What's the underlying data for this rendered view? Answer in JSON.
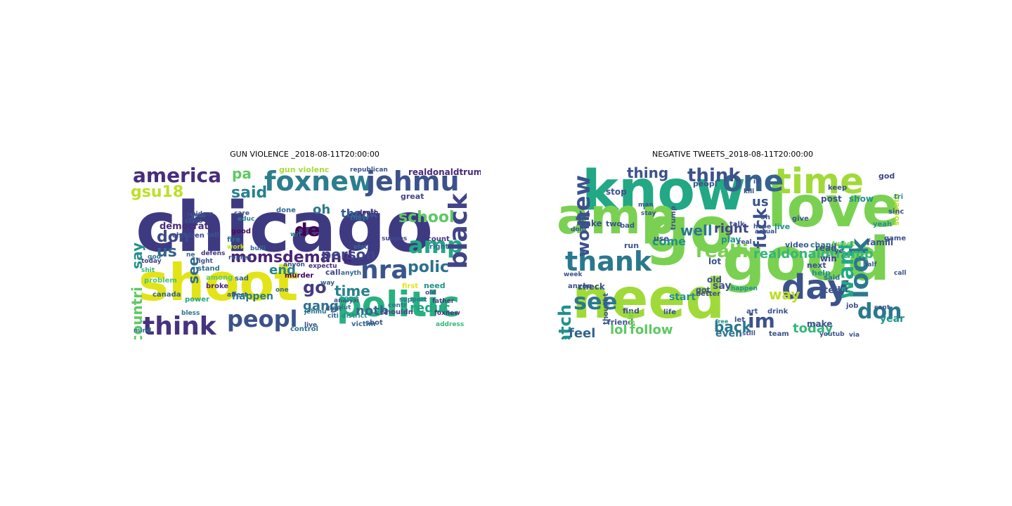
{
  "panels": [
    {
      "title": "GUN VIOLENCE _2018-08-11T20:00:00",
      "words": [
        {
          "text": "chicago",
          "color": "#3e3a82"
        },
        {
          "text": "shoot",
          "color": "#e2e418"
        },
        {
          "text": "politic",
          "color": "#2ab07f"
        },
        {
          "text": "foxnew",
          "color": "#2c7e8e"
        },
        {
          "text": "jehmu",
          "color": "#3b528b"
        },
        {
          "text": "think",
          "color": "#46327e"
        },
        {
          "text": "america",
          "color": "#472d7b"
        },
        {
          "text": "peopl",
          "color": "#3b528b"
        },
        {
          "text": "nra",
          "color": "#39558c"
        },
        {
          "text": "amp",
          "color": "#22a884"
        },
        {
          "text": "black",
          "color": "#414487"
        },
        {
          "text": "gsu18",
          "color": "#bddf26"
        },
        {
          "text": "momsdemand",
          "color": "#482475"
        },
        {
          "text": "said",
          "color": "#26828e"
        },
        {
          "text": "de",
          "color": "#440154"
        },
        {
          "text": "pa",
          "color": "#5ec962"
        },
        {
          "text": "countri",
          "color": "#5ec962"
        },
        {
          "text": "say",
          "color": "#21918c"
        },
        {
          "text": "don",
          "color": "#3e4989"
        },
        {
          "text": "us",
          "color": "#33638d"
        },
        {
          "text": "polic",
          "color": "#2d708e"
        },
        {
          "text": "time",
          "color": "#26828e"
        },
        {
          "text": "person",
          "color": "#414487"
        },
        {
          "text": "end",
          "color": "#25858e"
        },
        {
          "text": "oh",
          "color": "#2a788e"
        },
        {
          "text": "school",
          "color": "#5ec962"
        },
        {
          "text": "thank",
          "color": "#355f8d"
        },
        {
          "text": "gang",
          "color": "#2c728e"
        },
        {
          "text": "go",
          "color": "#443a83"
        },
        {
          "text": "reduc",
          "color": "#21a585"
        },
        {
          "text": "noth",
          "color": "#31688e"
        },
        {
          "text": "see",
          "color": "#2f6c8e"
        },
        {
          "text": "democrat",
          "color": "#472c7a"
        },
        {
          "text": "gun violenc",
          "color": "#a5db36"
        },
        {
          "text": "realdonaldtrump",
          "color": "#482878"
        },
        {
          "text": "republican",
          "color": "#3b528b"
        },
        {
          "text": "happen",
          "color": "#287c8e"
        },
        {
          "text": "children",
          "color": "#3e4a89"
        },
        {
          "text": "canada",
          "color": "#33638d"
        },
        {
          "text": "great",
          "color": "#414487"
        },
        {
          "text": "shot",
          "color": "#38588c"
        },
        {
          "text": "count",
          "color": "#46337f"
        },
        {
          "text": "right",
          "color": "#31688e"
        },
        {
          "text": "first",
          "color": "#e2e418"
        },
        {
          "text": "need",
          "color": "#21918c"
        },
        {
          "text": "call",
          "color": "#404688"
        },
        {
          "text": "fire",
          "color": "#2d708e"
        },
        {
          "text": "good",
          "color": "#470d60"
        },
        {
          "text": "support",
          "color": "#2a788e"
        },
        {
          "text": "analysi",
          "color": "#3b528b"
        },
        {
          "text": "father",
          "color": "#424086"
        },
        {
          "text": "victim",
          "color": "#31688e"
        },
        {
          "text": "address",
          "color": "#35b779"
        },
        {
          "text": "control",
          "color": "#2c728e"
        },
        {
          "text": "live",
          "color": "#3e4a89"
        },
        {
          "text": "today",
          "color": "#433e85"
        },
        {
          "text": "problem",
          "color": "#4ac16d"
        },
        {
          "text": "power",
          "color": "#22a884"
        },
        {
          "text": "among",
          "color": "#5ec962"
        },
        {
          "text": "stand",
          "color": "#2c728e"
        },
        {
          "text": "fight",
          "color": "#3b528b"
        },
        {
          "text": "broke",
          "color": "#482878"
        },
        {
          "text": "sad",
          "color": "#31688e"
        },
        {
          "text": "anyon",
          "color": "#3b528b"
        },
        {
          "text": "murder",
          "color": "#440154"
        },
        {
          "text": "expectu",
          "color": "#472d7b"
        },
        {
          "text": "way",
          "color": "#38588c"
        },
        {
          "text": "hand",
          "color": "#1f9e89"
        },
        {
          "text": "solut",
          "color": "#2a788e"
        },
        {
          "text": "citi",
          "color": "#355f8d"
        },
        {
          "text": "district",
          "color": "#23888e"
        },
        {
          "text": "shouldn",
          "color": "#414487"
        },
        {
          "text": "old",
          "color": "#3b528b"
        },
        {
          "text": "contr",
          "color": "#2c728e"
        },
        {
          "text": "foxnew",
          "color": "#46327e"
        },
        {
          "text": "done",
          "color": "#31688e"
        },
        {
          "text": "care",
          "color": "#3e4989"
        },
        {
          "text": "death",
          "color": "#482878"
        },
        {
          "text": "theyr",
          "color": "#2c728e"
        },
        {
          "text": "educ",
          "color": "#26828e"
        },
        {
          "text": "class",
          "color": "#3b528b"
        },
        {
          "text": "year",
          "color": "#2d708e"
        },
        {
          "text": "epidem",
          "color": "#414487"
        },
        {
          "text": "tell",
          "color": "#38588c"
        },
        {
          "text": "defens",
          "color": "#46327e"
        },
        {
          "text": "work",
          "color": "#c2df23"
        },
        {
          "text": "bulli",
          "color": "#31688e"
        },
        {
          "text": "repres",
          "color": "#3b528b"
        },
        {
          "text": "god",
          "color": "#2a788e"
        },
        {
          "text": "shit",
          "color": "#35b779"
        },
        {
          "text": "bless",
          "color": "#2c728e"
        },
        {
          "text": "affect",
          "color": "#355f8d"
        },
        {
          "text": "jehmu",
          "color": "#2c728e"
        },
        {
          "text": "anyth",
          "color": "#31688e"
        },
        {
          "text": "suppos",
          "color": "#3e4989"
        },
        {
          "text": "wit",
          "color": "#2a788e"
        },
        {
          "text": "one",
          "color": "#31688e"
        },
        {
          "text": "dont",
          "color": "#38588c"
        },
        {
          "text": "mind",
          "color": "#2c728e"
        },
        {
          "text": "elat",
          "color": "#31688e"
        },
        {
          "text": "ne",
          "color": "#31688e"
        },
        {
          "text": "trumpf",
          "color": "#3b528b"
        }
      ]
    },
    {
      "title": "NEGATIVE TWEETS_2018-08-11T20:00:00",
      "words": [
        {
          "text": "know",
          "color": "#22a884"
        },
        {
          "text": "love",
          "color": "#7ad151"
        },
        {
          "text": "go",
          "color": "#7ad151"
        },
        {
          "text": "good",
          "color": "#7ad151"
        },
        {
          "text": "need",
          "color": "#a0da39"
        },
        {
          "text": "amp",
          "color": "#7ad151"
        },
        {
          "text": "time",
          "color": "#a0da39"
        },
        {
          "text": "day",
          "color": "#3b528b"
        },
        {
          "text": "one",
          "color": "#33638d"
        },
        {
          "text": "thank",
          "color": "#2a788e"
        },
        {
          "text": "see",
          "color": "#2a788e"
        },
        {
          "text": "new",
          "color": "#3b528b"
        },
        {
          "text": "look",
          "color": "#2a788e"
        },
        {
          "text": "want",
          "color": "#22a884"
        },
        {
          "text": "don",
          "color": "#2a788e"
        },
        {
          "text": "watch",
          "color": "#21918c"
        },
        {
          "text": "work",
          "color": "#3b528b"
        },
        {
          "text": "think",
          "color": "#3b528b"
        },
        {
          "text": "fuck",
          "color": "#3b528b"
        },
        {
          "text": "realli",
          "color": "#7ad151"
        },
        {
          "text": "realdonaldtrump",
          "color": "#35b779"
        },
        {
          "text": "im",
          "color": "#3b528b"
        },
        {
          "text": "thing",
          "color": "#3b528b"
        },
        {
          "text": "back",
          "color": "#2a788e"
        },
        {
          "text": "feel",
          "color": "#33638d"
        },
        {
          "text": "lol",
          "color": "#5ec962"
        },
        {
          "text": "follow",
          "color": "#5ec962"
        },
        {
          "text": "today",
          "color": "#35b779"
        },
        {
          "text": "way",
          "color": "#bddf26"
        },
        {
          "text": "well",
          "color": "#2a788e"
        },
        {
          "text": "right",
          "color": "#414487"
        },
        {
          "text": "us",
          "color": "#3b528b"
        },
        {
          "text": "year",
          "color": "#21918c"
        },
        {
          "text": "even",
          "color": "#2c728e"
        },
        {
          "text": "make",
          "color": "#3b528b"
        },
        {
          "text": "come",
          "color": "#21918c"
        },
        {
          "text": "say",
          "color": "#3b528b"
        },
        {
          "text": "got",
          "color": "#3b528b"
        },
        {
          "text": "start",
          "color": "#21918c"
        },
        {
          "text": "check",
          "color": "#3b528b"
        },
        {
          "text": "friend",
          "color": "#3b528b"
        },
        {
          "text": "better",
          "color": "#3b528b"
        },
        {
          "text": "tell",
          "color": "#3b528b"
        },
        {
          "text": "show",
          "color": "#21918c"
        },
        {
          "text": "someth",
          "color": "#bddf26"
        },
        {
          "text": "god",
          "color": "#414487"
        },
        {
          "text": "post",
          "color": "#3b528b"
        },
        {
          "text": "video",
          "color": "#3b528b"
        },
        {
          "text": "chang",
          "color": "#2c728e"
        },
        {
          "text": "tweet",
          "color": "#7ad151"
        },
        {
          "text": "famili",
          "color": "#3b528b"
        },
        {
          "text": "read",
          "color": "#3b528b"
        },
        {
          "text": "win",
          "color": "#414487"
        },
        {
          "text": "next",
          "color": "#3b528b"
        },
        {
          "text": "help",
          "color": "#21918c"
        },
        {
          "text": "said",
          "color": "#2c728e"
        },
        {
          "text": "live",
          "color": "#21918c"
        },
        {
          "text": "give",
          "color": "#3b528b"
        },
        {
          "text": "keep",
          "color": "#3b528b"
        },
        {
          "text": "peopl",
          "color": "#3b528b"
        },
        {
          "text": "stop",
          "color": "#3b528b"
        },
        {
          "text": "anyon",
          "color": "#3b528b"
        },
        {
          "text": "old",
          "color": "#3b528b"
        },
        {
          "text": "play",
          "color": "#21918c"
        },
        {
          "text": "lot",
          "color": "#3b528b"
        },
        {
          "text": "take",
          "color": "#3b528b"
        },
        {
          "text": "two",
          "color": "#3b528b"
        },
        {
          "text": "use",
          "color": "#3b528b"
        },
        {
          "text": "talk",
          "color": "#3b528b"
        },
        {
          "text": "run",
          "color": "#3b528b"
        },
        {
          "text": "bad",
          "color": "#3b528b"
        },
        {
          "text": "happen",
          "color": "#21918c"
        },
        {
          "text": "life",
          "color": "#3b528b"
        },
        {
          "text": "find",
          "color": "#3b528b"
        },
        {
          "text": "art",
          "color": "#3b528b"
        },
        {
          "text": "let",
          "color": "#3b528b"
        },
        {
          "text": "drink",
          "color": "#3b528b"
        },
        {
          "text": "job",
          "color": "#3b528b"
        },
        {
          "text": "put",
          "color": "#3b528b"
        },
        {
          "text": "yeah",
          "color": "#21918c"
        },
        {
          "text": "game",
          "color": "#3b528b"
        },
        {
          "text": "call",
          "color": "#3b528b"
        },
        {
          "text": "tri",
          "color": "#21918c"
        },
        {
          "text": "free",
          "color": "#21918c"
        },
        {
          "text": "trump",
          "color": "#3b528b"
        },
        {
          "text": "thought",
          "color": "#3b528b"
        },
        {
          "text": "week",
          "color": "#3b528b"
        },
        {
          "text": "dont",
          "color": "#3b528b"
        },
        {
          "text": "girl",
          "color": "#7ad151"
        },
        {
          "text": "oh",
          "color": "#3b528b"
        },
        {
          "text": "hope",
          "color": "#3b528b"
        },
        {
          "text": "team",
          "color": "#3b528b"
        },
        {
          "text": "ye",
          "color": "#3b528b"
        },
        {
          "text": "cant",
          "color": "#3b528b"
        },
        {
          "text": "half",
          "color": "#3b528b"
        },
        {
          "text": "via",
          "color": "#3b528b"
        },
        {
          "text": "youtub",
          "color": "#3b528b"
        },
        {
          "text": "sinc",
          "color": "#3b528b"
        },
        {
          "text": "still",
          "color": "#3b528b"
        },
        {
          "text": "real",
          "color": "#3b528b"
        },
        {
          "text": "man",
          "color": "#3b528b"
        },
        {
          "text": "stay",
          "color": "#3b528b"
        },
        {
          "text": "ill",
          "color": "#3b528b"
        },
        {
          "text": "kill",
          "color": "#3b528b"
        },
        {
          "text": "actual",
          "color": "#3b528b"
        }
      ]
    }
  ]
}
